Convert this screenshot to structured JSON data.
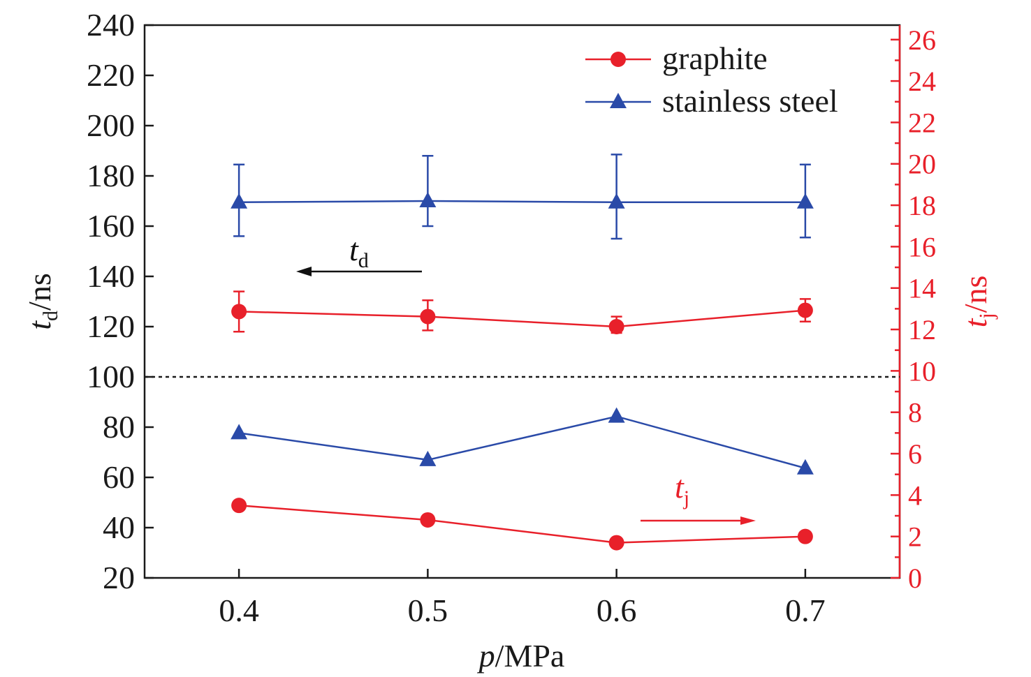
{
  "chart_data": {
    "type": "line",
    "x": [
      0.4,
      0.5,
      0.6,
      0.7
    ],
    "xlim": [
      0.35,
      0.75
    ],
    "x_ticks": [
      "0.4",
      "0.5",
      "0.6",
      "0.7"
    ],
    "xlabel": {
      "var": "p",
      "unit": "/MPa"
    },
    "left_axis": {
      "label": {
        "var": "t",
        "sub": "d",
        "unit": "/ns"
      },
      "ylim": [
        20,
        240
      ],
      "ticks": [
        "20",
        "40",
        "60",
        "80",
        "100",
        "120",
        "140",
        "160",
        "180",
        "200",
        "220",
        "240"
      ]
    },
    "right_axis": {
      "label": {
        "var": "t",
        "sub": "j",
        "unit": "/ns"
      },
      "ylim": [
        0,
        26.7
      ],
      "ticks": [
        "0",
        "2",
        "4",
        "6",
        "8",
        "10",
        "12",
        "14",
        "16",
        "18",
        "20",
        "22",
        "24",
        "26"
      ],
      "color": "#e8202a"
    },
    "divider_y": 100,
    "series": [
      {
        "name": "graphite",
        "axis": "left",
        "marker": "circle",
        "color": "#e8202a",
        "values": [
          126,
          124,
          120,
          126.5
        ],
        "err_low": [
          118,
          118.5,
          117.5,
          122
        ],
        "err_high": [
          134,
          130.5,
          124,
          131
        ]
      },
      {
        "name": "stainless steel",
        "axis": "left",
        "marker": "triangle",
        "color": "#2a4aa8",
        "values": [
          169.5,
          170,
          169.5,
          169.5
        ],
        "err_low": [
          156,
          160,
          155,
          155.5
        ],
        "err_high": [
          184.5,
          188,
          188.5,
          184.5
        ]
      },
      {
        "name": "graphite",
        "axis": "right",
        "marker": "circle",
        "color": "#e8202a",
        "values": [
          3.5,
          2.8,
          1.7,
          2.0
        ]
      },
      {
        "name": "stainless steel",
        "axis": "right",
        "marker": "triangle",
        "color": "#2a4aa8",
        "values": [
          7.0,
          5.7,
          7.8,
          5.3
        ]
      }
    ],
    "legend": {
      "position": "top-right",
      "entries": [
        {
          "label": "graphite",
          "marker": "circle",
          "color": "#e8202a"
        },
        {
          "label": "stainless steel",
          "marker": "triangle",
          "color": "#2a4aa8"
        }
      ]
    },
    "annotations": [
      {
        "var": "t",
        "sub": "d",
        "direction": "left",
        "color": "#111111"
      },
      {
        "var": "t",
        "sub": "j",
        "direction": "right",
        "color": "#e8202a"
      }
    ]
  }
}
